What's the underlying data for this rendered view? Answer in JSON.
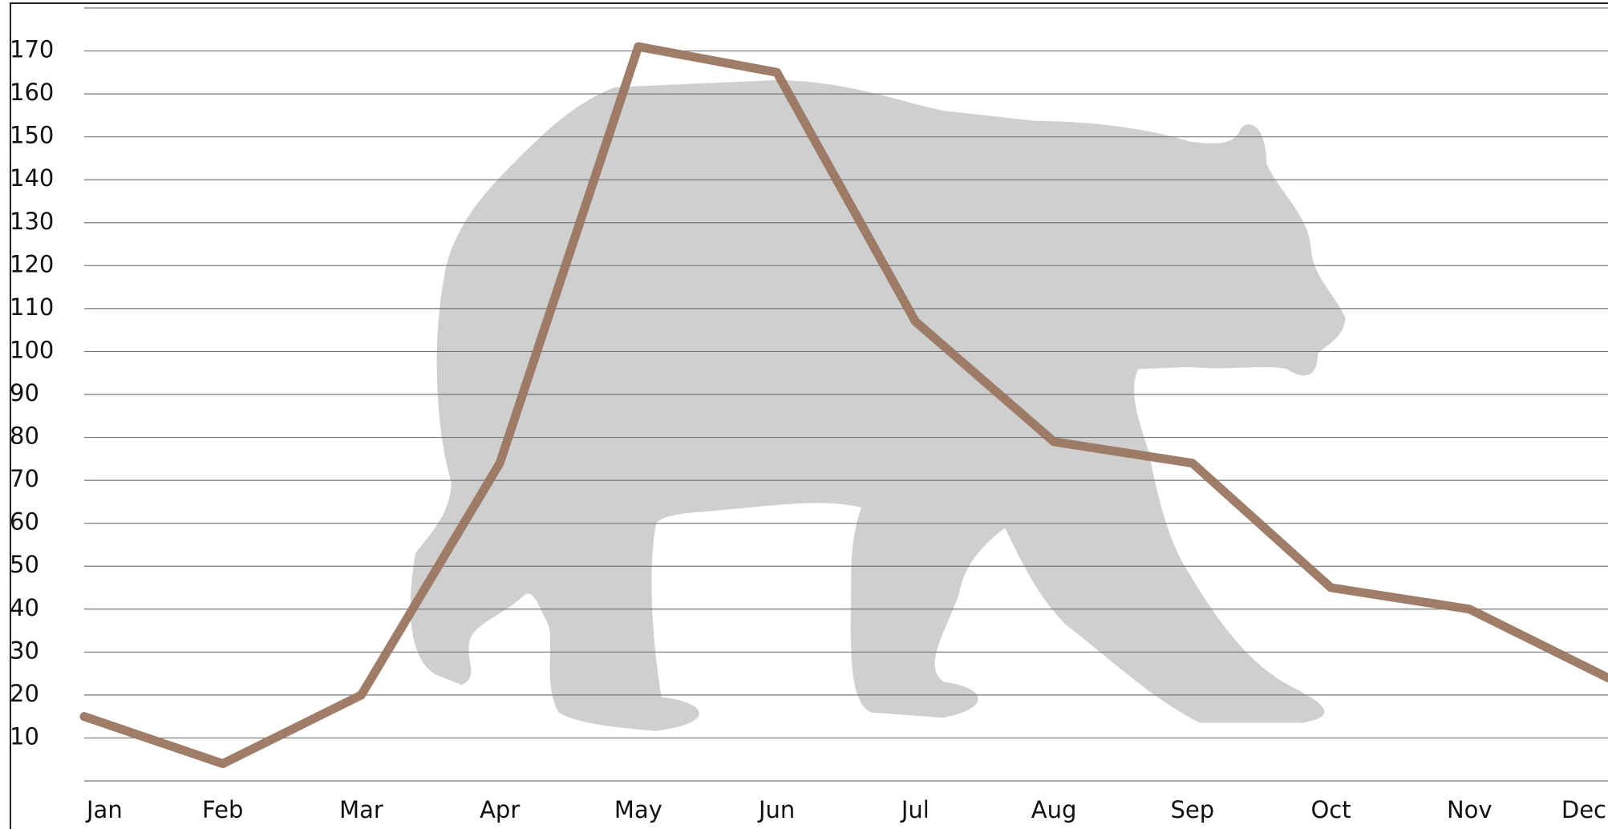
{
  "chart_data": {
    "type": "line",
    "categories": [
      "Jan",
      "Feb",
      "Mar",
      "Apr",
      "May",
      "Jun",
      "Jul",
      "Aug",
      "Sep",
      "Oct",
      "Nov",
      "Dec"
    ],
    "series": [
      {
        "color": "#9a7661",
        "values": [
          15,
          4,
          20,
          74,
          171,
          165,
          107,
          79,
          74,
          45,
          40,
          24
        ]
      }
    ],
    "ylim": [
      0,
      180
    ],
    "yticks": [
      10,
      20,
      30,
      40,
      50,
      60,
      70,
      80,
      90,
      100,
      110,
      120,
      130,
      140,
      150,
      160,
      170
    ],
    "grid": true
  }
}
